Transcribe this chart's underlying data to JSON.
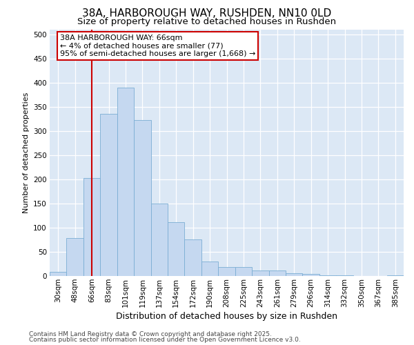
{
  "title1": "38A, HARBOROUGH WAY, RUSHDEN, NN10 0LD",
  "title2": "Size of property relative to detached houses in Rushden",
  "xlabel": "Distribution of detached houses by size in Rushden",
  "ylabel": "Number of detached properties",
  "categories": [
    "30sqm",
    "48sqm",
    "66sqm",
    "83sqm",
    "101sqm",
    "119sqm",
    "137sqm",
    "154sqm",
    "172sqm",
    "190sqm",
    "208sqm",
    "225sqm",
    "243sqm",
    "261sqm",
    "279sqm",
    "296sqm",
    "314sqm",
    "332sqm",
    "350sqm",
    "367sqm",
    "385sqm"
  ],
  "values": [
    8,
    78,
    203,
    335,
    390,
    322,
    150,
    111,
    75,
    30,
    18,
    18,
    12,
    12,
    6,
    4,
    1,
    1,
    0,
    0,
    1
  ],
  "bar_color": "#c5d8f0",
  "bar_edge_color": "#7aadd4",
  "vline_x_index": 2,
  "vline_color": "#cc0000",
  "annotation_line1": "38A HARBOROUGH WAY: 66sqm",
  "annotation_line2": "← 4% of detached houses are smaller (77)",
  "annotation_line3": "95% of semi-detached houses are larger (1,668) →",
  "annotation_box_color": "#ffffff",
  "annotation_box_edge": "#cc0000",
  "ylim": [
    0,
    510
  ],
  "yticks": [
    0,
    50,
    100,
    150,
    200,
    250,
    300,
    350,
    400,
    450,
    500
  ],
  "plot_bg_color": "#dce8f5",
  "fig_bg_color": "#ffffff",
  "grid_color": "#ffffff",
  "footer1": "Contains HM Land Registry data © Crown copyright and database right 2025.",
  "footer2": "Contains public sector information licensed under the Open Government Licence v3.0.",
  "title1_fontsize": 11,
  "title2_fontsize": 9.5,
  "ylabel_fontsize": 8,
  "xlabel_fontsize": 9,
  "tick_fontsize": 7.5,
  "footer_fontsize": 6.5,
  "annot_fontsize": 8
}
